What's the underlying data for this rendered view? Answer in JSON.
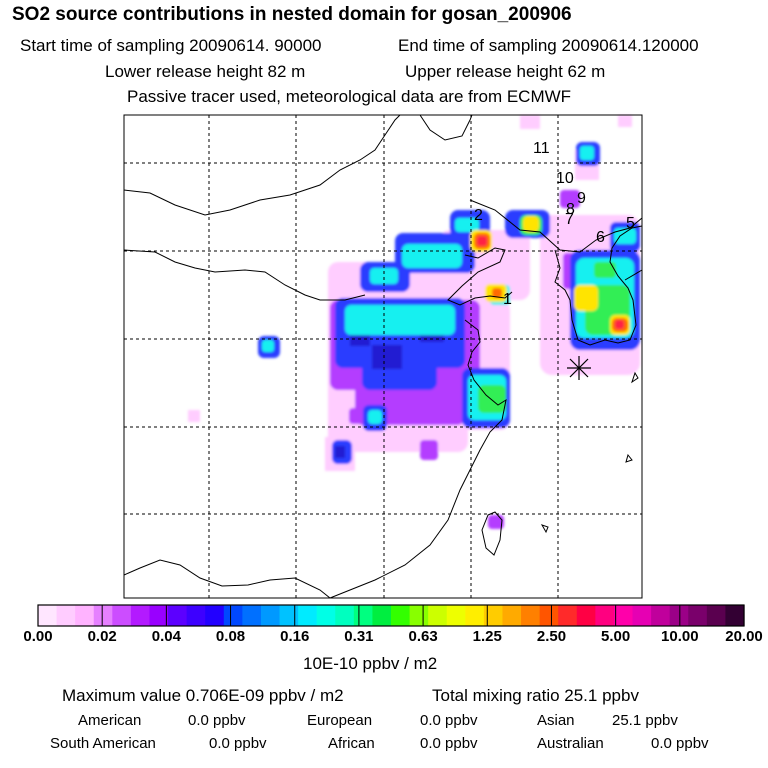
{
  "header": {
    "title": "SO2 source contributions in nested domain for gosan_200906",
    "start_time": "Start time of sampling 20090614. 90000",
    "end_time": "End time of sampling 20090614.120000",
    "lower_release": "Lower release height   82 m",
    "upper_release": "Upper release height   62 m",
    "tracer_note": "Passive tracer used, meteorological data are from ECMWF"
  },
  "map": {
    "site_marker": "receptor-star",
    "labels": [
      "1",
      "2",
      "5",
      "6",
      "7",
      "8",
      "9",
      "10",
      "11"
    ]
  },
  "colorbar": {
    "ticks": [
      "0.00",
      "0.02",
      "0.04",
      "0.08",
      "0.16",
      "0.31",
      "0.63",
      "1.25",
      "2.50",
      "5.00",
      "10.00",
      "20.00"
    ],
    "unit": "10E-10 ppbv / m2",
    "colors": [
      "#ffe6ff",
      "#ffccff",
      "#ffb3ff",
      "#e680ff",
      "#cc4dff",
      "#b31aff",
      "#9900ff",
      "#5c00ff",
      "#3d00ff",
      "#2200ff",
      "#0048ff",
      "#0070ff",
      "#0099ff",
      "#00c2ff",
      "#00ebff",
      "#00ffe6",
      "#00ffbf",
      "#00ff80",
      "#00ee40",
      "#33ff00",
      "#88ff00",
      "#ccff00",
      "#eeff00",
      "#ffee00",
      "#ffcc00",
      "#ffaa00",
      "#ff8000",
      "#ff5500",
      "#ff2a2a",
      "#ff0044",
      "#ff0080",
      "#ff00aa",
      "#e600b3",
      "#c0009c",
      "#9b0087",
      "#7a006b",
      "#5a004f",
      "#330033"
    ]
  },
  "footer": {
    "max_label": "Maximum value  0.706E-09 ppbv / m2",
    "total_label": "Total mixing ratio       25.1 ppbv",
    "regions": [
      {
        "name": "American",
        "value": "0.0 ppbv"
      },
      {
        "name": "European",
        "value": "0.0 ppbv"
      },
      {
        "name": "Asian",
        "value": "25.1 ppbv"
      },
      {
        "name": "South American",
        "value": "0.0 ppbv"
      },
      {
        "name": "African",
        "value": "0.0 ppbv"
      },
      {
        "name": "Australian",
        "value": "0.0 ppbv"
      }
    ]
  }
}
